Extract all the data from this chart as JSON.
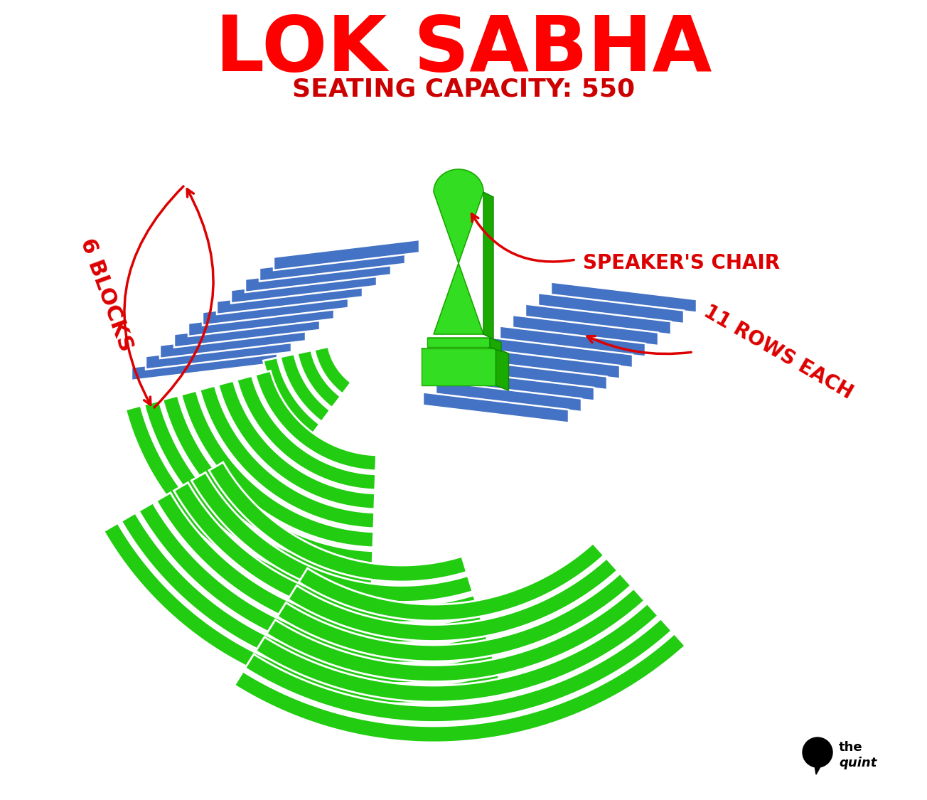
{
  "title": "LOK SABHA",
  "subtitle": "SEATING CAPACITY: 550",
  "title_color": "#FF0000",
  "subtitle_color": "#CC0000",
  "blue_color": "#4472C4",
  "green_color": "#22CC11",
  "white_color": "#FFFFFF",
  "background_color": "#FFFFFF",
  "annotation_color": "#DD0000",
  "label_6blocks": "6 BLOCKS",
  "label_11rows": "11 ROWS EACH",
  "label_speaker": "SPEAKER'S CHAIR",
  "figsize": [
    13.04,
    11.25
  ],
  "dpi": 100
}
